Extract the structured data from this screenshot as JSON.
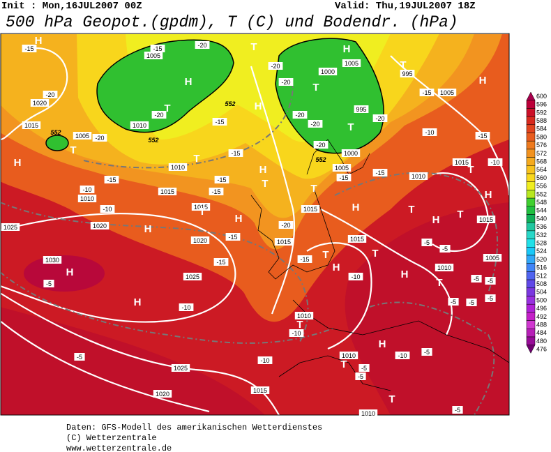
{
  "header": {
    "init": "Init : Mon,16JUL2007 00Z",
    "valid": "Valid: Thu,19JUL2007 18Z",
    "title": "500 hPa Geopot.(gpdm), T (C) und Bodendr. (hPa)"
  },
  "legend": {
    "levels": [
      600,
      596,
      592,
      588,
      584,
      580,
      576,
      572,
      568,
      564,
      560,
      556,
      552,
      548,
      544,
      540,
      536,
      532,
      528,
      524,
      520,
      516,
      512,
      508,
      504,
      500,
      496,
      492,
      488,
      484,
      480,
      476
    ],
    "colors": [
      "#a8004c",
      "#bc0038",
      "#cc1028",
      "#d82a1e",
      "#e2441e",
      "#e85c1e",
      "#ee7a1e",
      "#f2921e",
      "#f5aa1e",
      "#f8c21c",
      "#fad81c",
      "#f0ee20",
      "#b8e820",
      "#40d030",
      "#20c040",
      "#10b058",
      "#20c8a0",
      "#28d8c8",
      "#20e0e8",
      "#18c8f8",
      "#30a8f8",
      "#4084f8",
      "#5064f0",
      "#6048e8",
      "#7a38e0",
      "#9830e0",
      "#b020d8",
      "#c420c8",
      "#d038d0",
      "#b820b8",
      "#980c98",
      "#700070"
    ]
  },
  "map": {
    "isobar_labels": [
      "1005",
      "1010",
      "1005",
      "1020",
      "1015",
      "1010",
      "1015",
      "1015",
      "1010",
      "1020",
      "1025",
      "1020",
      "1030",
      "1025",
      "1015",
      "1015",
      "1000",
      "995",
      "1005",
      "1000",
      "1005",
      "1010",
      "1005",
      "995",
      "1015",
      "1015",
      "1010",
      "1005",
      "1015",
      "1010",
      "1010",
      "1015",
      "1025",
      "1020",
      "1010"
    ],
    "temperature_labels": [
      "-15",
      "-20",
      "-20",
      "-20",
      "-20",
      "-15",
      "-20",
      "-20",
      "-20",
      "-20",
      "-20",
      "-20",
      "-15",
      "-10",
      "-15",
      "-15",
      "-15",
      "-10",
      "-15",
      "-15",
      "-10",
      "-15",
      "-20",
      "-15",
      "-15",
      "-15",
      "-15",
      "-10",
      "-5",
      "-5",
      "-5",
      "-5",
      "-5",
      "-5",
      "-5",
      "-10",
      "-5",
      "-10",
      "-10",
      "-5",
      "-10",
      "-5",
      "-5",
      "-10",
      "-5",
      "-5",
      "-15"
    ],
    "pressure_centers": [
      "H",
      "H",
      "H",
      "H",
      "H",
      "H",
      "H",
      "H",
      "H",
      "H",
      "H",
      "H",
      "H",
      "H",
      "H",
      "H",
      "H",
      "T",
      "T",
      "T",
      "T",
      "T",
      "T",
      "T",
      "T",
      "T",
      "T",
      "T",
      "T",
      "T",
      "T",
      "T",
      "T",
      "T",
      "T",
      "T"
    ],
    "green_labels": [
      "552",
      "552",
      "552",
      "552"
    ]
  },
  "footer": {
    "lines": [
      "Daten: GFS-Modell des amerikanischen Wetterdienstes",
      "(C) Wetterzentrale",
      "www.wetterzentrale.de"
    ]
  }
}
